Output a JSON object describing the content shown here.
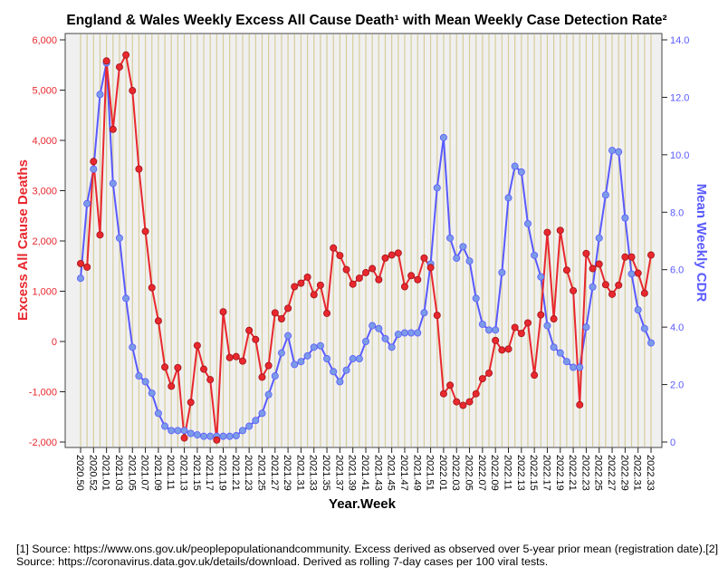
{
  "chart_data": {
    "type": "line",
    "title": "England & Wales Weekly Excess All Cause Death¹ with Mean Weekly Case Detection Rate²",
    "xlabel": "Year.Week",
    "ylabel": "Excess All Cause Deaths",
    "y2label": "Mean Weekly CDR",
    "ylim": [
      -2000,
      6000
    ],
    "y2lim": [
      0,
      14
    ],
    "yticks": [
      "-2,000",
      "-1,000",
      "0",
      "1,000",
      "2,000",
      "3,000",
      "4,000",
      "5,000",
      "6,000"
    ],
    "y2ticks": [
      "0",
      "2.0",
      "4.0",
      "6.0",
      "8.0",
      "10.0",
      "12.0",
      "14.0"
    ],
    "grid": "vertical",
    "x": [
      "2020.50",
      "2020.51",
      "2020.52",
      "2020.53",
      "2021.01",
      "2021.02",
      "2021.03",
      "2021.04",
      "2021.05",
      "2021.06",
      "2021.07",
      "2021.08",
      "2021.09",
      "2021.10",
      "2021.11",
      "2021.12",
      "2021.13",
      "2021.14",
      "2021.15",
      "2021.16",
      "2021.17",
      "2021.18",
      "2021.19",
      "2021.20",
      "2021.21",
      "2021.22",
      "2021.23",
      "2021.24",
      "2021.25",
      "2021.26",
      "2021.27",
      "2021.28",
      "2021.29",
      "2021.30",
      "2021.31",
      "2021.32",
      "2021.33",
      "2021.34",
      "2021.35",
      "2021.36",
      "2021.37",
      "2021.38",
      "2021.39",
      "2021.40",
      "2021.41",
      "2021.42",
      "2021.43",
      "2021.44",
      "2021.45",
      "2021.46",
      "2021.47",
      "2021.48",
      "2021.49",
      "2021.50",
      "2021.51",
      "2021.52",
      "2022.01",
      "2022.02",
      "2022.03",
      "2022.04",
      "2022.05",
      "2022.06",
      "2022.07",
      "2022.08",
      "2022.09",
      "2022.10",
      "2022.11",
      "2022.12",
      "2022.13",
      "2022.14",
      "2022.15",
      "2022.16",
      "2022.17",
      "2022.18",
      "2022.19",
      "2022.20",
      "2022.21",
      "2022.22",
      "2022.23",
      "2022.24",
      "2022.25",
      "2022.26",
      "2022.27",
      "2022.28",
      "2022.29",
      "2022.30",
      "2022.31",
      "2022.32",
      "2022.33"
    ],
    "series": [
      {
        "name": "Excess All Cause Deaths",
        "axis": "left",
        "color": "#e8282e",
        "values": [
          1550,
          1480,
          3580,
          2120,
          5580,
          4220,
          5460,
          5700,
          4990,
          3430,
          2190,
          1070,
          410,
          -510,
          -890,
          -520,
          -1920,
          -1210,
          -80,
          -550,
          -760,
          -1960,
          590,
          -320,
          -300,
          -390,
          220,
          40,
          -710,
          -480,
          570,
          450,
          660,
          1090,
          1160,
          1280,
          930,
          1120,
          560,
          1860,
          1710,
          1430,
          1140,
          1260,
          1370,
          1450,
          1230,
          1660,
          1720,
          1760,
          1090,
          1310,
          1230,
          1660,
          1470,
          520,
          -1040,
          -870,
          -1200,
          -1270,
          -1200,
          -1040,
          -740,
          -630,
          20,
          -170,
          -150,
          280,
          160,
          370,
          -670,
          530,
          2170,
          450,
          2210,
          1420,
          1010,
          -1260,
          1750,
          1450,
          1540,
          1130,
          940,
          1120,
          1680,
          1680,
          1360,
          960,
          1720
        ]
      },
      {
        "name": "Mean Weekly CDR",
        "axis": "right",
        "color": "#5a5aff",
        "values": [
          5.7,
          8.3,
          9.5,
          12.1,
          13.2,
          9.0,
          7.1,
          5.0,
          3.3,
          2.3,
          2.1,
          1.7,
          1.0,
          0.55,
          0.4,
          0.4,
          0.4,
          0.3,
          0.25,
          0.2,
          0.2,
          0.2,
          0.2,
          0.2,
          0.22,
          0.4,
          0.55,
          0.75,
          1.0,
          1.65,
          2.3,
          3.1,
          3.7,
          2.7,
          2.8,
          3.0,
          3.3,
          3.35,
          2.9,
          2.45,
          2.1,
          2.5,
          2.9,
          2.9,
          3.5,
          4.05,
          3.95,
          3.6,
          3.3,
          3.75,
          3.8,
          3.8,
          3.8,
          4.5,
          6.2,
          8.85,
          10.6,
          7.1,
          6.4,
          6.8,
          6.3,
          5.0,
          4.1,
          3.9,
          3.9,
          5.9,
          8.5,
          9.6,
          9.4,
          7.6,
          6.5,
          5.75,
          4.05,
          3.3,
          3.1,
          2.8,
          2.6,
          2.6,
          4.0,
          5.4,
          7.1,
          8.6,
          10.15,
          10.1,
          7.8,
          5.85,
          4.6,
          3.95,
          3.45
        ]
      }
    ]
  },
  "footnote": "[1] Source: https://www.ons.gov.uk/peoplepopulationandcommunity. Excess derived as observed over 5-year prior mean (registration date).[2] Source: https://coronavirus.data.gov.uk/details/download. Derived as rolling 7-day cases per 100 viral tests."
}
